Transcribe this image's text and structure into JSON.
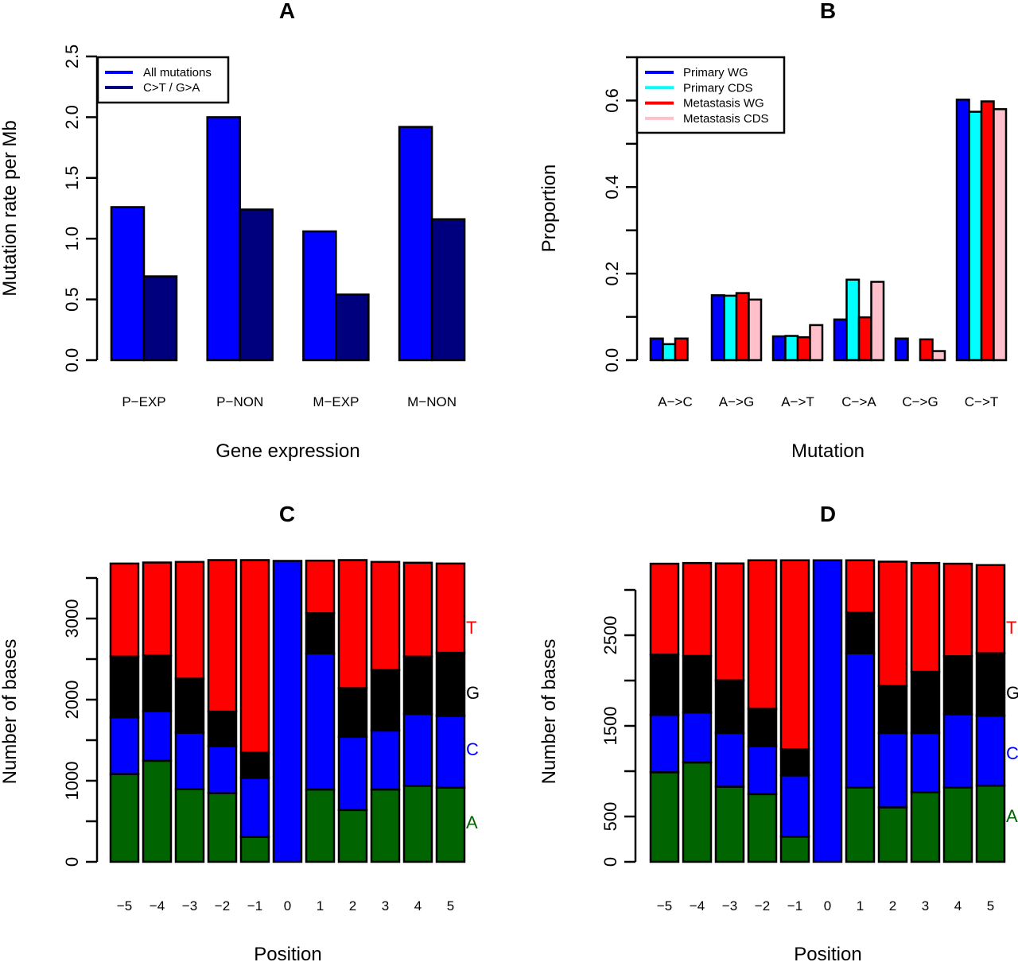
{
  "figure": {
    "panels": [
      "A",
      "B",
      "C",
      "D"
    ]
  },
  "chart_data": [
    {
      "panel": "A",
      "type": "bar",
      "title": "A",
      "xlabel": "Gene expression",
      "ylabel": "Mutation rate per Mb",
      "ylim": [
        0,
        2.5
      ],
      "yticks": [
        0.0,
        0.5,
        1.0,
        1.5,
        2.0,
        2.5
      ],
      "ytick_labels": [
        "0.0",
        "0.5",
        "1.0",
        "1.5",
        "2.0",
        "2.5"
      ],
      "categories": [
        "P−EXP",
        "P−NON",
        "M−EXP",
        "M−NON"
      ],
      "series": [
        {
          "name": "All mutations",
          "color": "#0000ff",
          "values": [
            1.26,
            2.0,
            1.06,
            1.92
          ]
        },
        {
          "name": "C>T / G>A",
          "color": "#00007f",
          "values": [
            0.69,
            1.24,
            0.54,
            1.16
          ]
        }
      ],
      "legend": {
        "position": "top-left",
        "entries": [
          "All mutations",
          "C>T / G>A"
        ]
      },
      "grid": false
    },
    {
      "panel": "B",
      "type": "bar",
      "title": "B",
      "xlabel": "Mutation",
      "ylabel": "Proportion",
      "ylim": [
        0,
        0.7
      ],
      "yticks": [
        0.0,
        0.1,
        0.2,
        0.3,
        0.4,
        0.5,
        0.6,
        0.7
      ],
      "ytick_labels": [
        "0.0",
        "",
        "0.2",
        "",
        "0.4",
        "",
        "0.6",
        ""
      ],
      "categories": [
        "A−>C",
        "A−>G",
        "A−>T",
        "C−>A",
        "C−>G",
        "C−>T"
      ],
      "series": [
        {
          "name": "Primary WG",
          "color": "#0000ff",
          "values": [
            0.05,
            0.15,
            0.055,
            0.094,
            0.05,
            0.602
          ]
        },
        {
          "name": "Primary CDS",
          "color": "#00ffff",
          "values": [
            0.037,
            0.149,
            0.056,
            0.186,
            0.0,
            0.574
          ]
        },
        {
          "name": "Metastasis WG",
          "color": "#ff0000",
          "values": [
            0.05,
            0.155,
            0.053,
            0.099,
            0.048,
            0.598
          ]
        },
        {
          "name": "Metastasis CDS",
          "color": "#ffc0cb",
          "values": [
            0.0,
            0.14,
            0.081,
            0.181,
            0.021,
            0.58
          ]
        }
      ],
      "legend": {
        "position": "top-left",
        "entries": [
          "Primary WG",
          "Primary CDS",
          "Metastasis WG",
          "Metastasis CDS"
        ]
      },
      "grid": false
    },
    {
      "panel": "C",
      "type": "bar",
      "stacked": true,
      "title": "C",
      "xlabel": "Position",
      "ylabel": "Number of bases",
      "ylim": [
        0,
        3500
      ],
      "yticks": [
        0,
        500,
        1000,
        1500,
        2000,
        2500,
        3000,
        3500
      ],
      "ytick_labels": [
        "0",
        "",
        "1000",
        "",
        "2000",
        "",
        "3000",
        ""
      ],
      "categories": [
        "−5",
        "−4",
        "−3",
        "−2",
        "−1",
        "0",
        "1",
        "2",
        "3",
        "4",
        "5"
      ],
      "series": [
        {
          "name": "A",
          "color": "#006400",
          "values": [
            1082,
            1246,
            898,
            846,
            308,
            0,
            892,
            639,
            892,
            938,
            915
          ]
        },
        {
          "name": "C",
          "color": "#0000ff",
          "values": [
            701,
            613,
            695,
            580,
            728,
            3711,
            1678,
            902,
            727,
            885,
            885
          ]
        },
        {
          "name": "G",
          "color": "#000000",
          "values": [
            748,
            685,
            666,
            426,
            311,
            0,
            495,
            600,
            748,
            708,
            777
          ]
        },
        {
          "name": "T",
          "color": "#ff0000",
          "values": [
            1147,
            1147,
            1439,
            1869,
            2374,
            0,
            649,
            1580,
            1331,
            1157,
            1101
          ]
        }
      ],
      "side_labels": [
        {
          "text": "T",
          "color": "#ff0000"
        },
        {
          "text": "G",
          "color": "#000000"
        },
        {
          "text": "C",
          "color": "#0000ff"
        },
        {
          "text": "A",
          "color": "#006400"
        }
      ],
      "grid": false
    },
    {
      "panel": "D",
      "type": "bar",
      "stacked": true,
      "title": "D",
      "xlabel": "Position",
      "ylabel": "Number of bases",
      "ylim": [
        0,
        3000
      ],
      "yticks": [
        0,
        500,
        1000,
        1500,
        2000,
        2500,
        3000
      ],
      "ytick_labels": [
        "0",
        "500",
        "",
        "1500",
        "",
        "2500",
        ""
      ],
      "categories": [
        "−5",
        "−4",
        "−3",
        "−2",
        "−1",
        "0",
        "1",
        "2",
        "3",
        "4",
        "5"
      ],
      "series": [
        {
          "name": "A",
          "color": "#006400",
          "values": [
            988,
            1096,
            829,
            747,
            278,
            0,
            821,
            601,
            768,
            821,
            841
          ]
        },
        {
          "name": "C",
          "color": "#0000ff",
          "values": [
            633,
            551,
            593,
            528,
            675,
            3327,
            1480,
            821,
            654,
            806,
            771
          ]
        },
        {
          "name": "G",
          "color": "#000000",
          "values": [
            665,
            625,
            580,
            413,
            290,
            0,
            448,
            518,
            674,
            642,
            689
          ]
        },
        {
          "name": "T",
          "color": "#ff0000",
          "values": [
            1003,
            1025,
            1290,
            1639,
            2084,
            0,
            578,
            1372,
            1201,
            1020,
            973
          ]
        }
      ],
      "side_labels": [
        {
          "text": "T",
          "color": "#ff0000"
        },
        {
          "text": "G",
          "color": "#000000"
        },
        {
          "text": "C",
          "color": "#0000ff"
        },
        {
          "text": "A",
          "color": "#006400"
        }
      ],
      "grid": false
    }
  ]
}
